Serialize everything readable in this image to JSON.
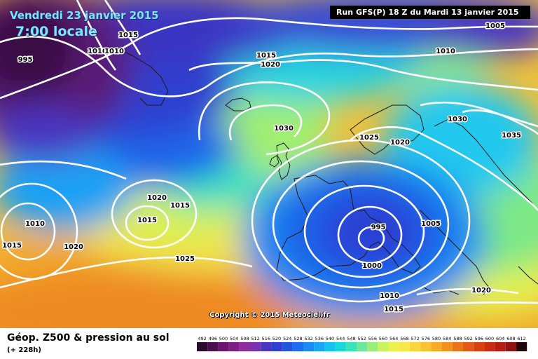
{
  "header": {
    "date": "Vendredi 23 janvier 2015",
    "time": "7:00 locale",
    "run": "Run GFS(P) 18 Z du Mardi 13 janvier 2015"
  },
  "map": {
    "copyright": "Copyright © 2015 Meteociel.fr",
    "isobar_labels": [
      "995",
      "1015",
      "1010",
      "1010",
      "1015",
      "1020",
      "1030",
      "1025",
      "1020",
      "1030",
      "1035",
      "1005",
      "1010",
      "1020",
      "1015",
      "1015",
      "1010",
      "1015",
      "1020",
      "1025",
      "995",
      "1005",
      "1000",
      "1010",
      "1015",
      "1020"
    ]
  },
  "legend": {
    "title": "Géop. Z500 & pression au sol",
    "subtitle": "(+ 228h)",
    "scale_values": [
      "492",
      "496",
      "500",
      "504",
      "508",
      "512",
      "516",
      "520",
      "524",
      "528",
      "532",
      "536",
      "540",
      "544",
      "548",
      "552",
      "556",
      "560",
      "564",
      "568",
      "572",
      "576",
      "580",
      "584",
      "588",
      "592",
      "596",
      "600",
      "604",
      "608",
      "612"
    ],
    "scale_colors": [
      "#2b0b2e",
      "#4a0f4e",
      "#6b166e",
      "#7e1f86",
      "#8e2c9d",
      "#7a33b0",
      "#4a36c0",
      "#2f3fd0",
      "#2155e0",
      "#1c6ef0",
      "#1a8af5",
      "#16a6f5",
      "#13c4f0",
      "#18d8d8",
      "#3ae3b8",
      "#6ae99a",
      "#9aef78",
      "#c8f35c",
      "#e9f24c",
      "#f7e848",
      "#f9d63c",
      "#f8c230",
      "#f6aa28",
      "#f29020",
      "#ec7418",
      "#e45a14",
      "#d84010",
      "#cb2c10",
      "#b51e10",
      "#8f1410",
      "#200808"
    ]
  }
}
